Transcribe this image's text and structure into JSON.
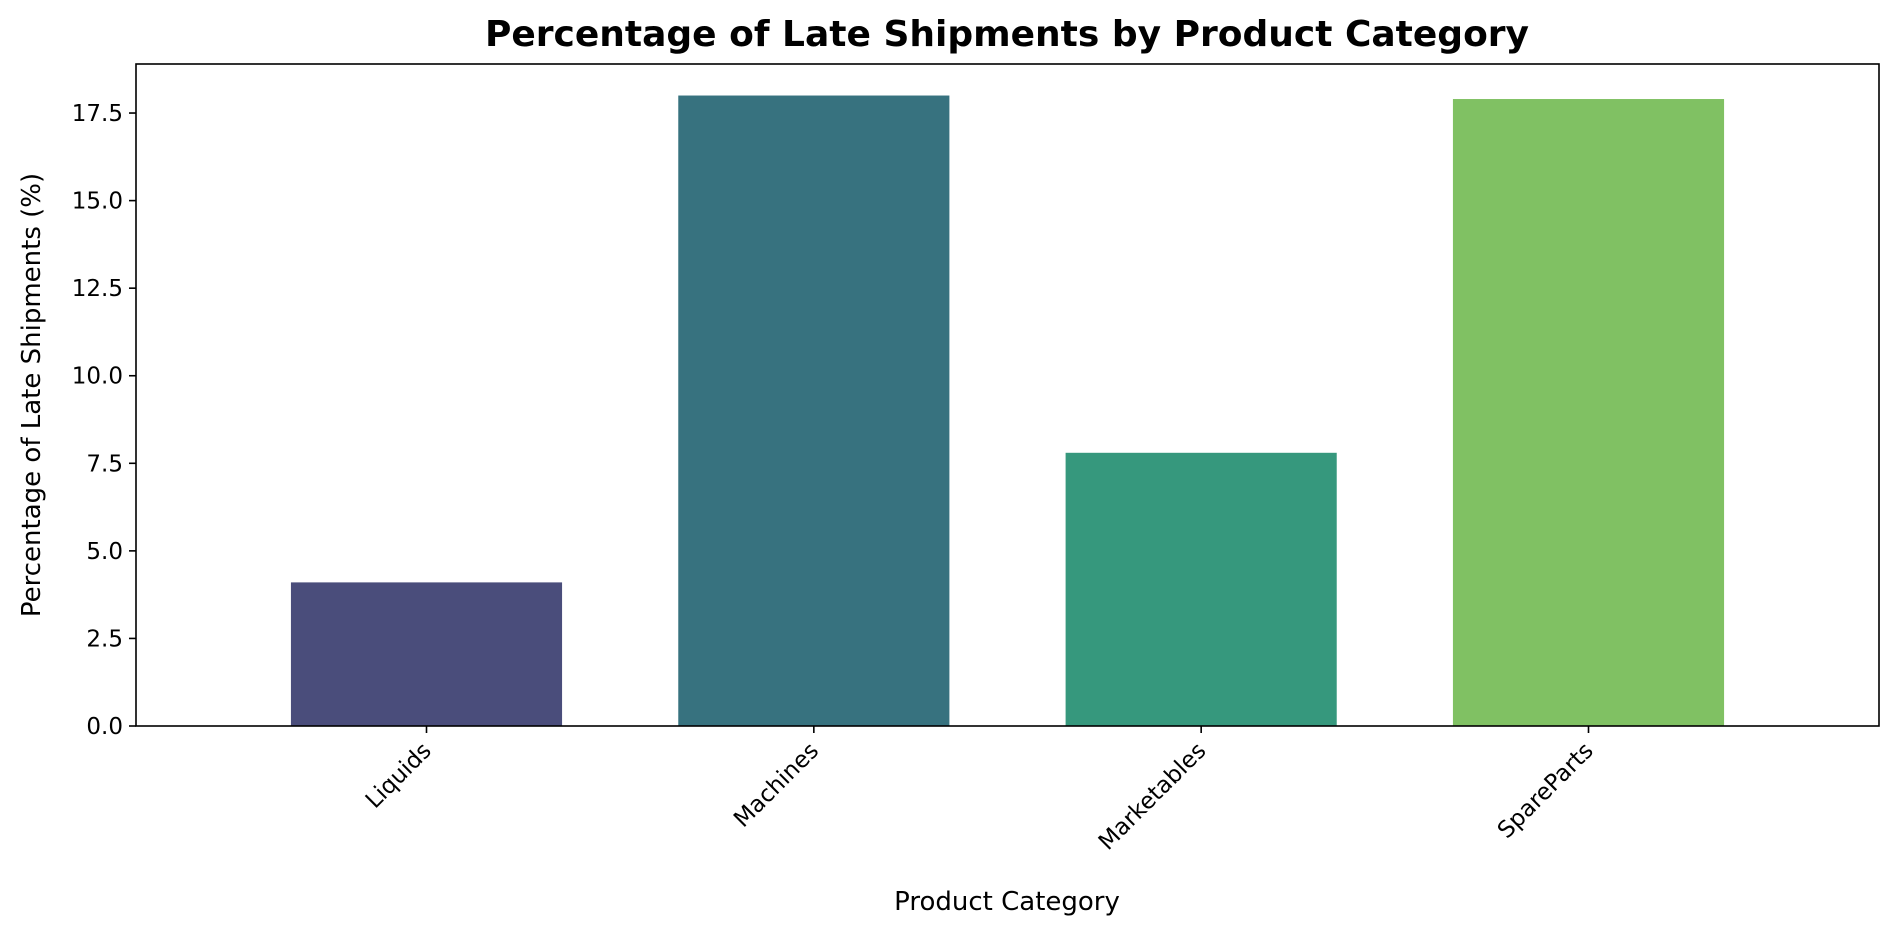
{
  "chart_data": {
    "type": "bar",
    "title": "Percentage of Late Shipments by Product Category",
    "xlabel": "Product Category",
    "ylabel": "Percentage of Late Shipments (%)",
    "categories": [
      "Liquids",
      "Machines",
      "Marketables",
      "SpareParts"
    ],
    "values": [
      4.1,
      18.0,
      7.8,
      17.9
    ],
    "colors": [
      "#4a4d7b",
      "#37727f",
      "#36987d",
      "#80c163"
    ],
    "ylim": [
      0,
      18.9
    ],
    "yticks": [
      0.0,
      2.5,
      5.0,
      7.5,
      10.0,
      12.5,
      15.0,
      17.5
    ],
    "ytick_labels": [
      "0.0",
      "2.5",
      "5.0",
      "7.5",
      "10.0",
      "12.5",
      "15.0",
      "17.5"
    ],
    "grid": false,
    "legend": "none"
  }
}
